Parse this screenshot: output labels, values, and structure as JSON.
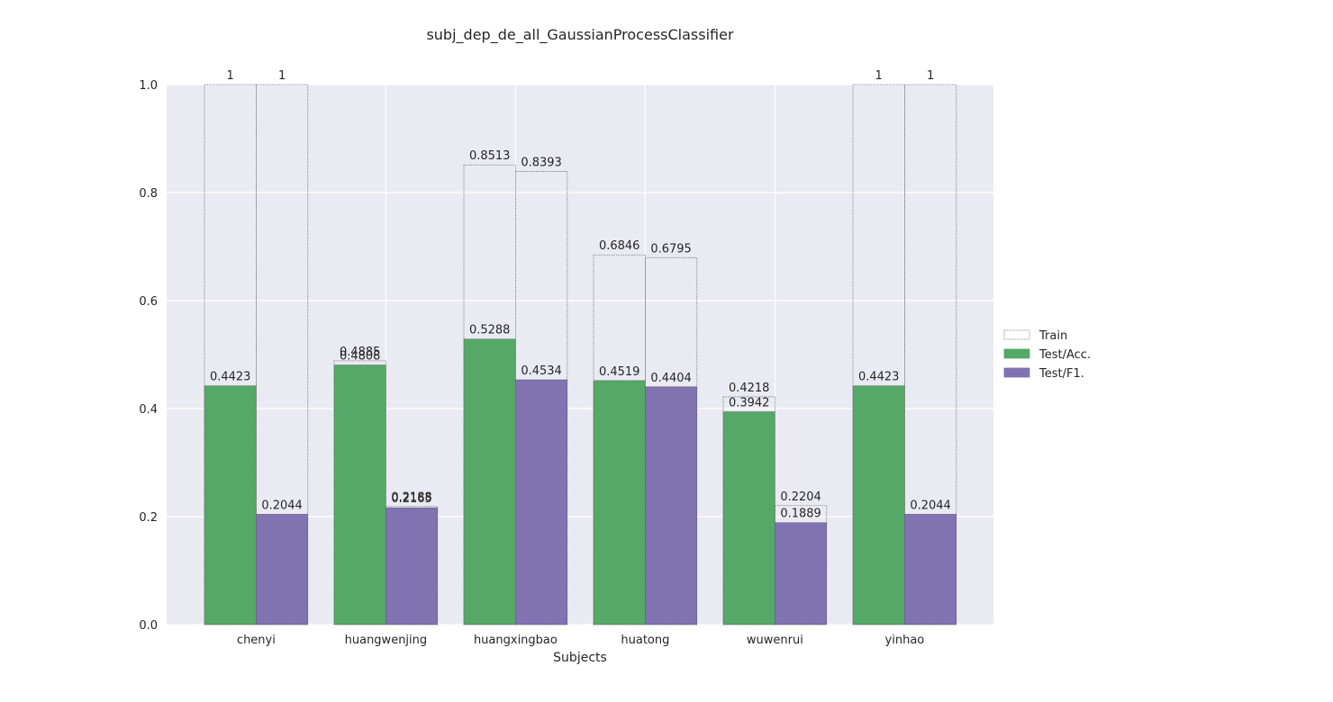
{
  "chart_data": {
    "type": "bar",
    "title": "subj_dep_de_all_GaussianProcessClassifier",
    "xlabel": "Subjects",
    "ylabel": "",
    "ylim": [
      0,
      1.0
    ],
    "yticks": [
      "0.0",
      "0.2",
      "0.4",
      "0.6",
      "0.8",
      "1.0"
    ],
    "grid": true,
    "legend_position": "right",
    "categories": [
      "chenyi",
      "huangwenjing",
      "huangxingbao",
      "huatong",
      "wuwenrui",
      "yinhao"
    ],
    "train": {
      "name": "Train",
      "acc": [
        1,
        0.4885,
        0.8513,
        0.6846,
        0.4218,
        1
      ],
      "acc_labels": [
        "1",
        "0.4885",
        "0.8513",
        "0.6846",
        "0.4218",
        "1"
      ],
      "f1": [
        1,
        0.2188,
        0.8393,
        0.6795,
        0.2204,
        1
      ],
      "f1_labels": [
        "1",
        "0.2188",
        "0.8393",
        "0.6795",
        "0.2204",
        "1"
      ]
    },
    "series": [
      {
        "name": "Test/Acc.",
        "color": "#55a868",
        "values": [
          0.4423,
          0.4808,
          0.5288,
          0.4519,
          0.3942,
          0.4423
        ],
        "labels": [
          "0.4423",
          "0.4808",
          "0.5288",
          "0.4519",
          "0.3942",
          "0.4423"
        ]
      },
      {
        "name": "Test/F1.",
        "color": "#8172b2",
        "values": [
          0.2044,
          0.2165,
          0.4534,
          0.4404,
          0.1889,
          0.2044
        ],
        "labels": [
          "0.2044",
          "0.2165",
          "0.4534",
          "0.4404",
          "0.1889",
          "0.2044"
        ]
      }
    ],
    "colors": {
      "plot_background": "#eaeaf2",
      "grid": "#ffffff",
      "train_edge": "#7f7f7f"
    }
  }
}
